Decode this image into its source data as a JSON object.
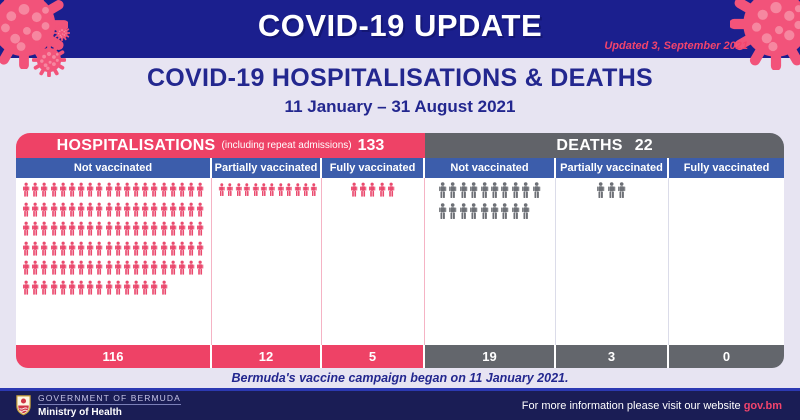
{
  "banner": {
    "title": "COVID-19 UPDATE",
    "updated": "Updated 3, September 2021"
  },
  "heading": {
    "title": "COVID-19 HOSPITALISATIONS & DEATHS",
    "subtitle": "11 January – 31 August 2021"
  },
  "chart_data": {
    "type": "pictogram",
    "title": "COVID-19 HOSPITALISATIONS & DEATHS",
    "subtitle": "11 January – 31 August 2021",
    "categories": [
      "Not vaccinated",
      "Partially vaccinated",
      "Fully vaccinated"
    ],
    "series": [
      {
        "name": "Hospitalisations (including repeat admissions)",
        "total": 133,
        "values": [
          116,
          12,
          5
        ]
      },
      {
        "name": "Deaths",
        "total": 22,
        "values": [
          19,
          3,
          0
        ]
      }
    ],
    "annotation": "Bermuda's vaccine campaign began on 11 January 2021."
  },
  "table": {
    "sections": [
      {
        "label": "HOSPITALISATIONS",
        "sublabel": "(including repeat admissions)",
        "total": "133",
        "header_bg": "#ee4266",
        "total_bg": "#ee4266",
        "separator_color": "#f5b3c4",
        "icon_color": "#ea4a6e",
        "columns": [
          {
            "label": "Not vaccinated",
            "total": "116",
            "icon_rows": [
              20,
              20,
              20,
              20,
              20,
              16
            ],
            "align": "left"
          },
          {
            "label": "Partially vaccinated",
            "total": "12",
            "icon_rows": [
              12
            ],
            "align": "left"
          },
          {
            "label": "Fully vaccinated",
            "total": "5",
            "icon_rows": [
              5
            ],
            "align": "center"
          }
        ]
      },
      {
        "label": "DEATHS",
        "sublabel": "",
        "total": "22",
        "header_bg": "#616369",
        "total_bg": "#63666c",
        "separator_color": "#dbdce9",
        "icon_color": "#6d7076",
        "columns": [
          {
            "label": "Not vaccinated",
            "total": "19",
            "icon_rows": [
              10,
              9
            ],
            "align": "center"
          },
          {
            "label": "Partially vaccinated",
            "total": "3",
            "icon_rows": [
              3
            ],
            "align": "center"
          },
          {
            "label": "Fully vaccinated",
            "total": "0",
            "icon_rows": [],
            "align": "center"
          }
        ]
      }
    ]
  },
  "note": "Bermuda's vaccine campaign began on 11 January 2021.",
  "footer": {
    "government": "GOVERNMENT OF BERMUDA",
    "ministry": "Ministry of Health",
    "info": "For more information please visit our website",
    "link": "gov.bm"
  },
  "colors": {
    "banner_navy": "#1b1f8e",
    "footer_navy": "#1a1d55",
    "background_lavender": "#e7e4f2",
    "pink": "#ee4266",
    "blue_subheader": "#3c5dab",
    "gray_header": "#616369",
    "gray_total": "#63666c",
    "hosp_icon_pink": "#ea4a6e",
    "death_icon_gray": "#6d7076",
    "accent_text_navy": "#23278f",
    "updated_pink": "#f2446c"
  }
}
